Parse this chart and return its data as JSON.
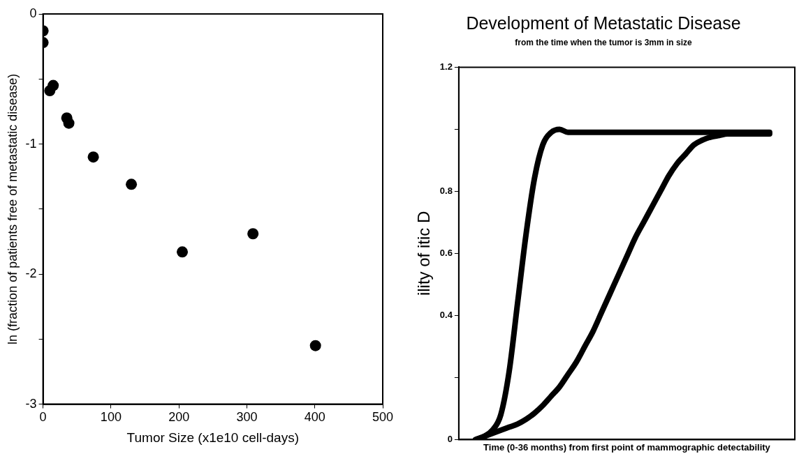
{
  "chart_data": [
    {
      "type": "scatter",
      "xlabel": "Tumor Size (x1e10 cell-days)",
      "ylabel": "ln (fraction of patients free of metastatic disease)",
      "x": [
        0,
        0,
        15,
        10,
        35,
        38,
        74,
        130,
        205,
        309,
        401
      ],
      "values": [
        -0.13,
        -0.22,
        -0.55,
        -0.59,
        -0.8,
        -0.84,
        -1.1,
        -1.31,
        -1.83,
        -1.69,
        -2.55
      ],
      "color": "#000000",
      "marker": "circle",
      "xlim": [
        0,
        500
      ],
      "xticks": [
        0,
        100,
        200,
        300,
        400,
        500
      ],
      "ylim": [
        -3,
        0
      ],
      "yticks": [
        -3,
        {
          "value": -2.5,
          "label": null
        },
        -2,
        {
          "value": -1.5,
          "label": null
        },
        -1,
        {
          "value": -0.5,
          "label": null
        },
        0
      ],
      "grid": false,
      "legend": false
    },
    {
      "type": "line",
      "title": "Development of Metastatic Disease",
      "subtitle": "from the time when the tumor is 3mm in size",
      "xlabel": "Time (0-36 months) from first point of mammographic detectability",
      "ylabel": "ility of itic D",
      "categories": [
        null,
        null,
        null,
        null,
        null,
        null,
        null,
        null,
        null,
        null,
        null,
        null,
        null,
        null,
        null,
        null,
        null,
        null,
        null,
        null,
        null,
        null,
        null,
        null,
        null,
        null,
        null,
        null,
        null,
        null,
        null,
        null,
        null,
        null,
        null,
        null,
        null,
        null,
        null,
        null,
        null
      ],
      "series": [
        {
          "color": "#000000",
          "values": [
            null,
            null,
            0,
            0.01,
            0.03,
            0.08,
            0.22,
            0.44,
            0.66,
            0.84,
            0.95,
            0.99,
            1.0,
            0.99,
            0.99,
            0.99,
            0.99,
            0.99,
            0.99,
            0.99,
            0.99,
            0.99,
            0.99,
            0.99,
            0.99,
            0.99,
            0.99,
            0.99,
            0.99,
            0.99,
            0.99,
            0.99,
            0.99,
            0.99,
            0.99,
            0.99,
            0.99,
            0.99,
            null,
            null,
            null
          ]
        },
        {
          "color": "#000000",
          "values": [
            null,
            null,
            0,
            0.01,
            0.02,
            0.03,
            0.04,
            0.05,
            0.065,
            0.085,
            0.11,
            0.14,
            0.17,
            0.21,
            0.25,
            0.3,
            0.35,
            0.41,
            0.47,
            0.53,
            0.59,
            0.65,
            0.7,
            0.75,
            0.8,
            0.85,
            0.89,
            0.92,
            0.95,
            0.965,
            0.975,
            0.98,
            0.985,
            0.985,
            0.985,
            0.985,
            0.985,
            0.985,
            null,
            null,
            null
          ]
        }
      ],
      "marker": "none",
      "line_style": "solid",
      "ylim": [
        0,
        1.2
      ],
      "yticks": [
        0,
        {
          "value": 0.2,
          "label": null
        },
        0.4,
        0.6,
        0.8,
        {
          "value": 1.0,
          "label": null
        },
        1.2
      ],
      "tick_labels": "y",
      "grid": false,
      "legend": false
    }
  ]
}
